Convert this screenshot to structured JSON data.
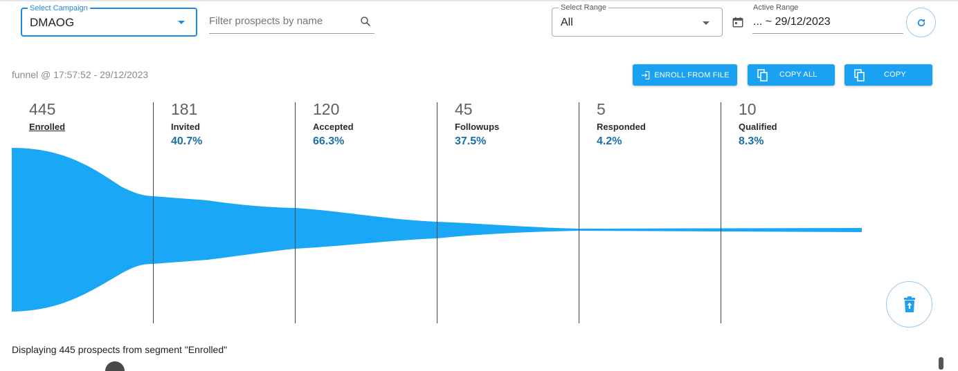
{
  "filters": {
    "campaign": {
      "label": "Select Campaign",
      "value": "DMAOG"
    },
    "search": {
      "placeholder": "Filter prospects by name",
      "value": ""
    },
    "range": {
      "label": "Select Range",
      "value": "All"
    },
    "active_range": {
      "label": "Active Range",
      "value": "... ~ 29/12/2023"
    }
  },
  "icons": {
    "campaign_dropdown": "caret-down-icon",
    "search": "search-icon",
    "range_dropdown": "caret-down-icon",
    "calendar": "calendar-icon",
    "refresh": "refresh-icon",
    "enroll": "enroll-from-file-icon",
    "copy": "copy-icon",
    "delete": "trash-icon"
  },
  "funnel": {
    "timestamp": "funnel @ 17:57:52 - 29/12/2023",
    "actions": {
      "enroll_from_file": "ENROLL FROM FILE",
      "copy_all": "COPY ALL",
      "copy": "COPY"
    },
    "stages": [
      {
        "count": "445",
        "name": "Enrolled",
        "percent": ""
      },
      {
        "count": "181",
        "name": "Invited",
        "percent": "40.7%"
      },
      {
        "count": "120",
        "name": "Accepted",
        "percent": "66.3%"
      },
      {
        "count": "45",
        "name": "Followups",
        "percent": "37.5%"
      },
      {
        "count": "5",
        "name": "Responded",
        "percent": "4.2%"
      },
      {
        "count": "10",
        "name": "Qualified",
        "percent": "8.3%"
      }
    ],
    "selected_stage": "Enrolled"
  },
  "status": "Displaying 445 prospects from segment \"Enrolled\"",
  "colors": {
    "accent": "#1e88e5",
    "button": "#1ba1f2",
    "funnel": "#1aa7f5",
    "percent_text": "#1a6fa6"
  }
}
